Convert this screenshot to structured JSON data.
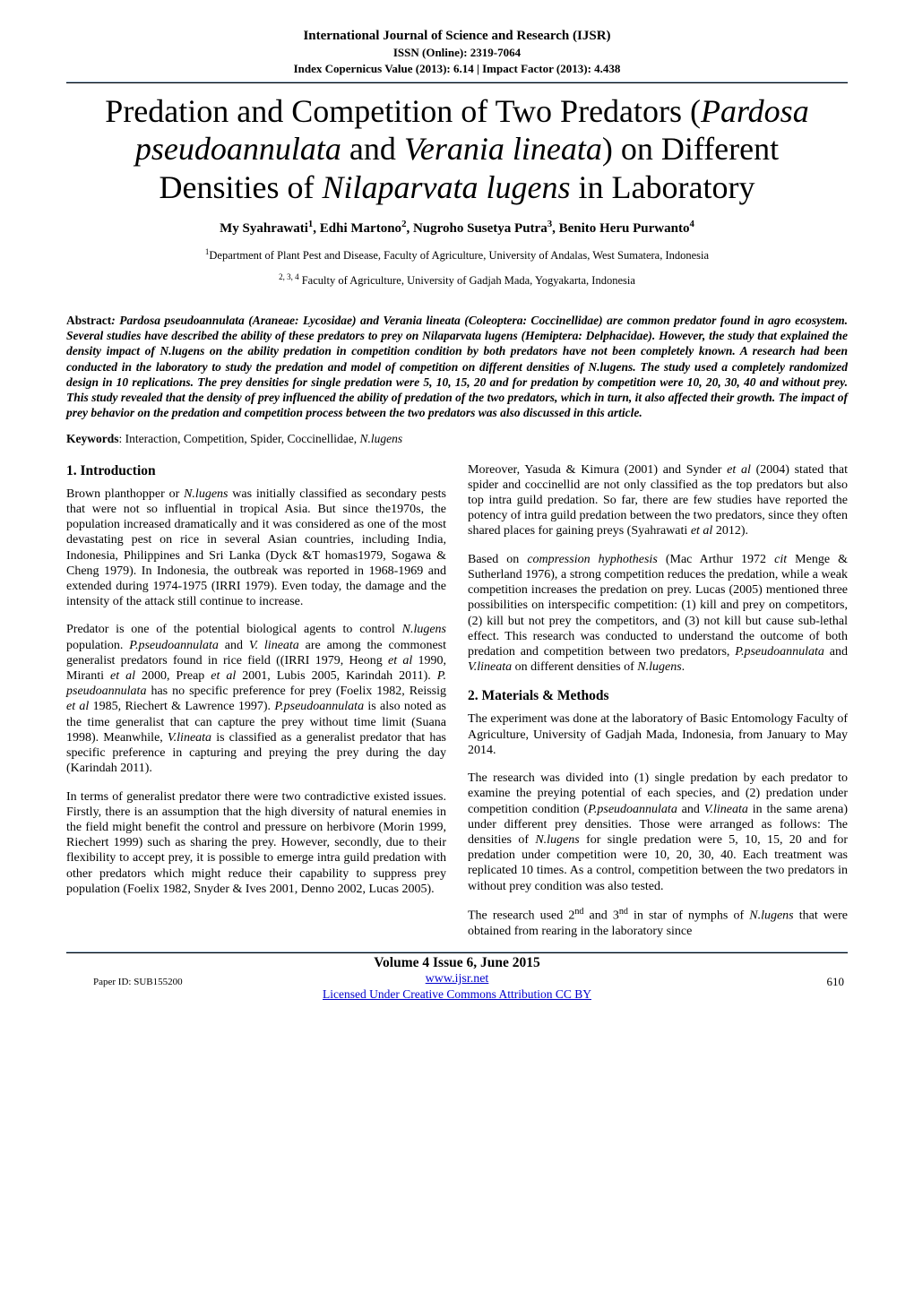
{
  "header": {
    "journal_name": "International Journal of Science and Research (IJSR)",
    "issn_line": "ISSN (Online): 2319-7064",
    "metrics_line": "Index Copernicus Value (2013): 6.14 | Impact Factor (2013): 4.438"
  },
  "title": {
    "pre": "Predation and Competition of Two Predators (",
    "sp1": "Pardosa pseudoannulata",
    "mid1": " and ",
    "sp2": "Verania lineata",
    "mid2": ") on Different Densities of ",
    "sp3": "Nilaparvata lugens",
    "post": " in Laboratory"
  },
  "authors": {
    "a1": "My Syahrawati",
    "s1": "1",
    "a2": "Edhi Martono",
    "s2": "2",
    "a3": "Nugroho Susetya Putra",
    "s3": "3",
    "a4": "Benito Heru Purwanto",
    "s4": "4"
  },
  "affil": {
    "l1_sup": "1",
    "l1": "Department of Plant Pest and Disease, Faculty of Agriculture, University of Andalas, West Sumatera, Indonesia",
    "l2_sup": "2, 3, 4",
    "l2": " Faculty of Agriculture, University of Gadjah Mada, Yogyakarta, Indonesia"
  },
  "abstract": {
    "label": "Abstract",
    "body": ": Pardosa pseudoannulata (Araneae: Lycosidae) and Verania lineata (Coleoptera: Coccinellidae) are common predator found in agro ecosystem. Several studies have described the ability of these predators to prey on Nilaparvata lugens (Hemiptera: Delphacidae). However, the study that explained the density impact of N.lugens on the ability predation in competition condition by both predators have not been completely known. A research had been conducted in the laboratory to study the predation and model of competition on different densities of N.lugens. The study used a completely randomized design in 10 replications. The prey densities for single predation were 5, 10, 15, 20 and for predation by competition were 10, 20, 30, 40 and without prey. This study revealed that the density of prey influenced the ability of predation of the two predators, which in turn, it also affected their growth. The impact of prey behavior on the predation and competition process between the two predators was also discussed in this article."
  },
  "keywords": {
    "label": "Keywords",
    "list_pre": ": Interaction, Competition, Spider, Coccinellidae, ",
    "list_it": "N.lugens"
  },
  "left": {
    "sec1": "1.  Introduction",
    "p1a": "Brown planthopper or ",
    "p1it": "N.lugens",
    "p1b": " was initially classified as secondary pests that were not so influential in tropical Asia. But since the1970s, the population increased dramatically and it was considered as one of the most devastating pest on rice in several Asian countries, including India, Indonesia, Philippines and Sri Lanka (Dyck &T homas1979, Sogawa & Cheng 1979).  In Indonesia, the outbreak was reported in 1968-1969 and extended during 1974-1975 (IRRI 1979). Even today, the damage and the intensity of the attack still continue to increase.",
    "p2a": "Predator is one of the potential biological agents to control ",
    "p2it1": "N.lugens",
    "p2b": " population. ",
    "p2it2": "P.pseudoannulata",
    "p2c": " and ",
    "p2it3": "V. lineata",
    "p2d": " are among the commonest generalist predators found in rice field ((IRRI 1979, Heong ",
    "p2it4": "et al",
    "p2e": " 1990, Miranti ",
    "p2it5": "et al",
    "p2f": " 2000, Preap ",
    "p2it6": "et al",
    "p2g": " 2001, Lubis 2005, Karindah 2011). ",
    "p2it7": "P. pseudoannulata",
    "p2h": " has no specific preference for prey (Foelix 1982, Reissig ",
    "p2it8": "et al",
    "p2i": " 1985, Riechert & Lawrence 1997). ",
    "p2it9": "P.pseudoannulata",
    "p2j": " is also noted as the time generalist that can capture the prey without time limit (Suana 1998). Meanwhile, ",
    "p2it10": "V.lineata",
    "p2k": " is classified as a generalist predator that has specific preference in capturing and preying the prey during the day (Karindah 2011).",
    "p3": "In terms of generalist predator there were two contradictive existed issues. Firstly, there is an assumption that the high diversity of natural enemies in the field might benefit the control and pressure on herbivore (Morin 1999, Riechert 1999) such as sharing the prey. However, secondly, due to their flexibility to accept prey, it is possible to emerge intra guild predation with other predators which might reduce their capability to suppress prey population (Foelix 1982, Snyder & Ives 2001, Denno 2002, Lucas 2005)."
  },
  "right": {
    "p1a": "Moreover, Yasuda & Kimura (2001) and Synder ",
    "p1it1": "et al",
    "p1b": " (2004) stated that spider and coccinellid are not only classified as the top predators but also top intra guild predation. So far, there are few studies have reported the potency of intra guild predation between the two predators, since they often shared places for gaining preys (Syahrawati ",
    "p1it2": "et al",
    "p1c": " 2012).",
    "p2a": "Based on ",
    "p2it1": "compression hyphothesis",
    "p2b": " (Mac Arthur 1972 ",
    "p2it2": "cit",
    "p2c": " Menge & Sutherland 1976), a strong competition reduces the predation, while a weak competition increases the predation on prey. Lucas (2005) mentioned three possibilities on interspecific competition: (1) kill and prey on competitors, (2) kill but not prey the competitors, and (3) not kill but cause sub-lethal effect. This research was conducted to understand the outcome of both predation and competition between two predators, ",
    "p2it3": "P.pseudoannulata",
    "p2d": " and ",
    "p2it4": "V.lineata",
    "p2e": " on different densities of ",
    "p2it5": "N.lugens",
    "p2f": ".",
    "sec2": "2.  Materials & Methods",
    "p3": "The experiment was done at the laboratory of Basic Entomology Faculty of Agriculture, University of Gadjah Mada, Indonesia, from January to May 2014.",
    "p4a": "The research was divided into (1) single predation by each predator to examine the preying potential of each species, and (2) predation under competition condition (",
    "p4it1": "P.pseudoannulata",
    "p4b": " and ",
    "p4it2": "V.lineata",
    "p4c": " in the same arena) under different prey densities. Those were arranged as follows: The densities of ",
    "p4it3": "N.lugens",
    "p4d": " for single predation were 5, 10, 15, 20 and for predation under competition were 10, 20, 30, 40. Each treatment was replicated 10 times. As a control, competition between the two predators in without prey condition was also tested.",
    "p5a": "The research used 2",
    "p5sup1": "nd",
    "p5b": " and 3",
    "p5sup2": "nd",
    "p5c": " in star of nymphs of ",
    "p5it1": "N.lugens",
    "p5d": " that were obtained from rearing in the laboratory since"
  },
  "footer": {
    "volume": "Volume 4 Issue 6, June 2015",
    "url": "www.ijsr.net",
    "license": "Licensed Under Creative Commons Attribution CC BY",
    "paper_id": "Paper ID: SUB155200",
    "page": "610"
  }
}
